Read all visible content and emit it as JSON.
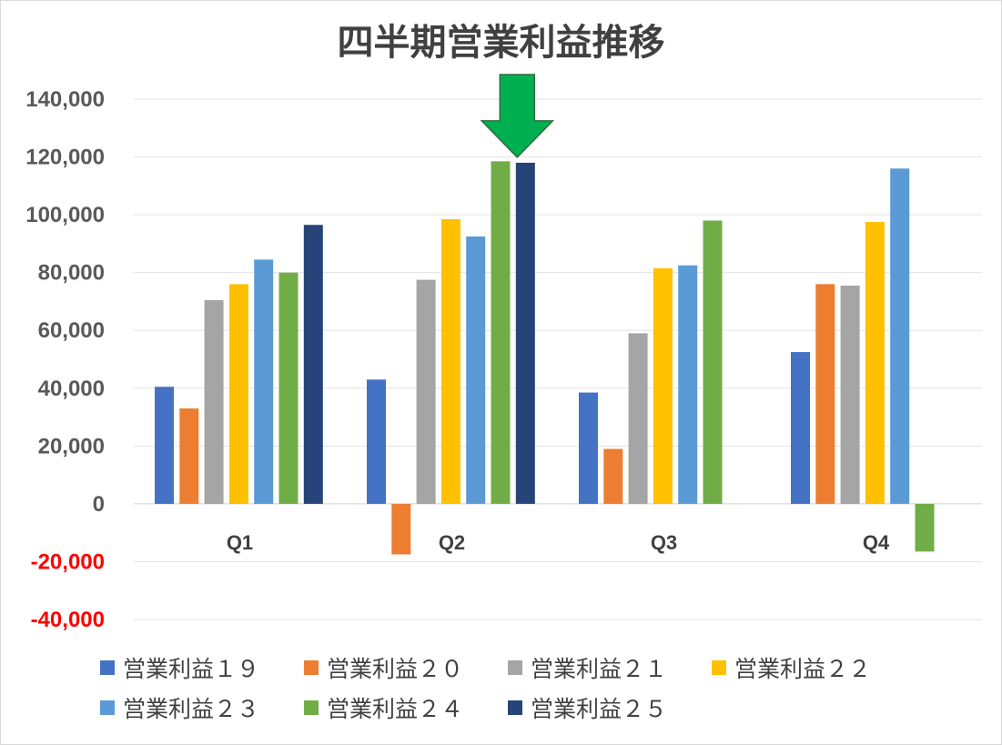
{
  "chart_data": {
    "type": "bar",
    "title": "四半期営業利益推移",
    "categories": [
      "Q1",
      "Q2",
      "Q3",
      "Q4"
    ],
    "ylim": [
      -40000,
      140000
    ],
    "yticks": [
      {
        "value": 140000,
        "label": "140,000",
        "color": "#595959"
      },
      {
        "value": 120000,
        "label": "120,000",
        "color": "#595959"
      },
      {
        "value": 100000,
        "label": "100,000",
        "color": "#595959"
      },
      {
        "value": 80000,
        "label": "80,000",
        "color": "#595959"
      },
      {
        "value": 60000,
        "label": "60,000",
        "color": "#595959"
      },
      {
        "value": 40000,
        "label": "40,000",
        "color": "#595959"
      },
      {
        "value": 20000,
        "label": "20,000",
        "color": "#595959"
      },
      {
        "value": 0,
        "label": "0",
        "color": "#595959"
      },
      {
        "value": -20000,
        "label": "-20,000",
        "color": "#ff0000"
      },
      {
        "value": -40000,
        "label": "-40,000",
        "color": "#ff0000"
      }
    ],
    "grid": true,
    "legend_position": "bottom",
    "series": [
      {
        "name": "営業利益１９",
        "color": "#4472c4",
        "values": [
          40500,
          43000,
          38500,
          52500
        ]
      },
      {
        "name": "営業利益２０",
        "color": "#ed7d31",
        "values": [
          33000,
          -17500,
          19000,
          76000
        ]
      },
      {
        "name": "営業利益２１",
        "color": "#a5a5a5",
        "values": [
          70500,
          77500,
          59000,
          75500
        ]
      },
      {
        "name": "営業利益２２",
        "color": "#ffc000",
        "values": [
          76000,
          98500,
          81500,
          97500
        ]
      },
      {
        "name": "営業利益２３",
        "color": "#5b9bd5",
        "values": [
          84500,
          92500,
          82500,
          116000
        ]
      },
      {
        "name": "営業利益２４",
        "color": "#70ad47",
        "values": [
          80000,
          118500,
          98000,
          -16500
        ]
      },
      {
        "name": "営業利益２５",
        "color": "#264478",
        "values": [
          96500,
          118000,
          null,
          null
        ]
      }
    ],
    "annotation": {
      "type": "down-arrow",
      "color": "#00b050",
      "target_category": "Q2",
      "target_series": "営業利益２５"
    }
  },
  "legend_rows": [
    [
      "営業利益１９",
      "営業利益２０",
      "営業利益２１",
      "営業利益２２"
    ],
    [
      "営業利益２３",
      "営業利益２４",
      "営業利益２５"
    ]
  ]
}
